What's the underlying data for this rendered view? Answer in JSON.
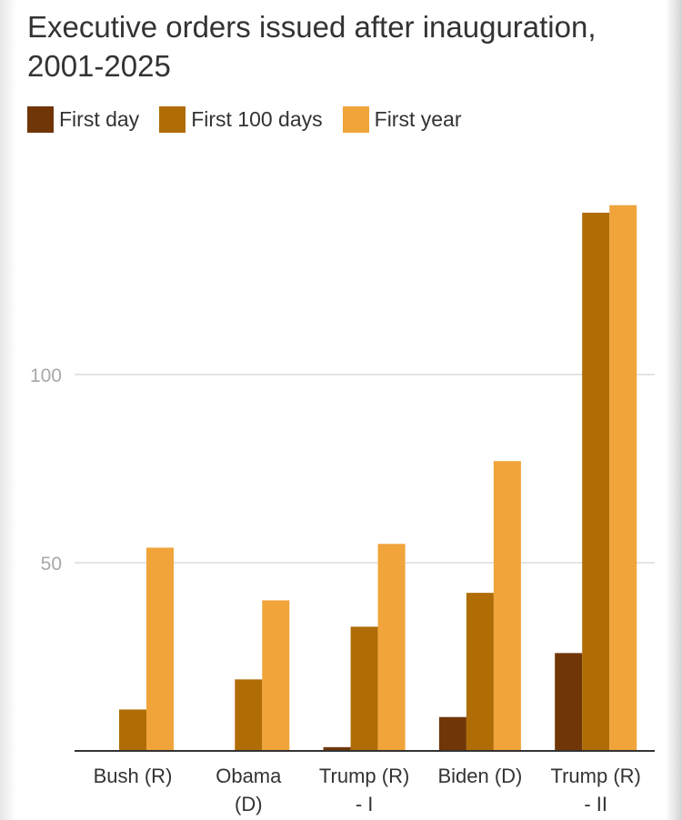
{
  "chart_data": {
    "type": "bar",
    "title": "Executive orders issued after inauguration, 2001-2025",
    "categories": [
      [
        "Bush (R)"
      ],
      [
        "Obama",
        "(D)"
      ],
      [
        "Trump (R)",
        "- I"
      ],
      [
        "Biden (D)"
      ],
      [
        "Trump (R)",
        "- II"
      ]
    ],
    "series": [
      {
        "name": "First day",
        "color": "#703608",
        "values": [
          0,
          0,
          1,
          9,
          26
        ]
      },
      {
        "name": "First 100 days",
        "color": "#b06c05",
        "values": [
          11,
          19,
          33,
          42,
          143
        ]
      },
      {
        "name": "First year",
        "color": "#f0a43a",
        "values": [
          54,
          40,
          55,
          77,
          145
        ]
      }
    ],
    "yticks": [
      50,
      100
    ],
    "ylim": [
      0,
      145
    ],
    "grid": true,
    "legend_position": "top-left"
  }
}
